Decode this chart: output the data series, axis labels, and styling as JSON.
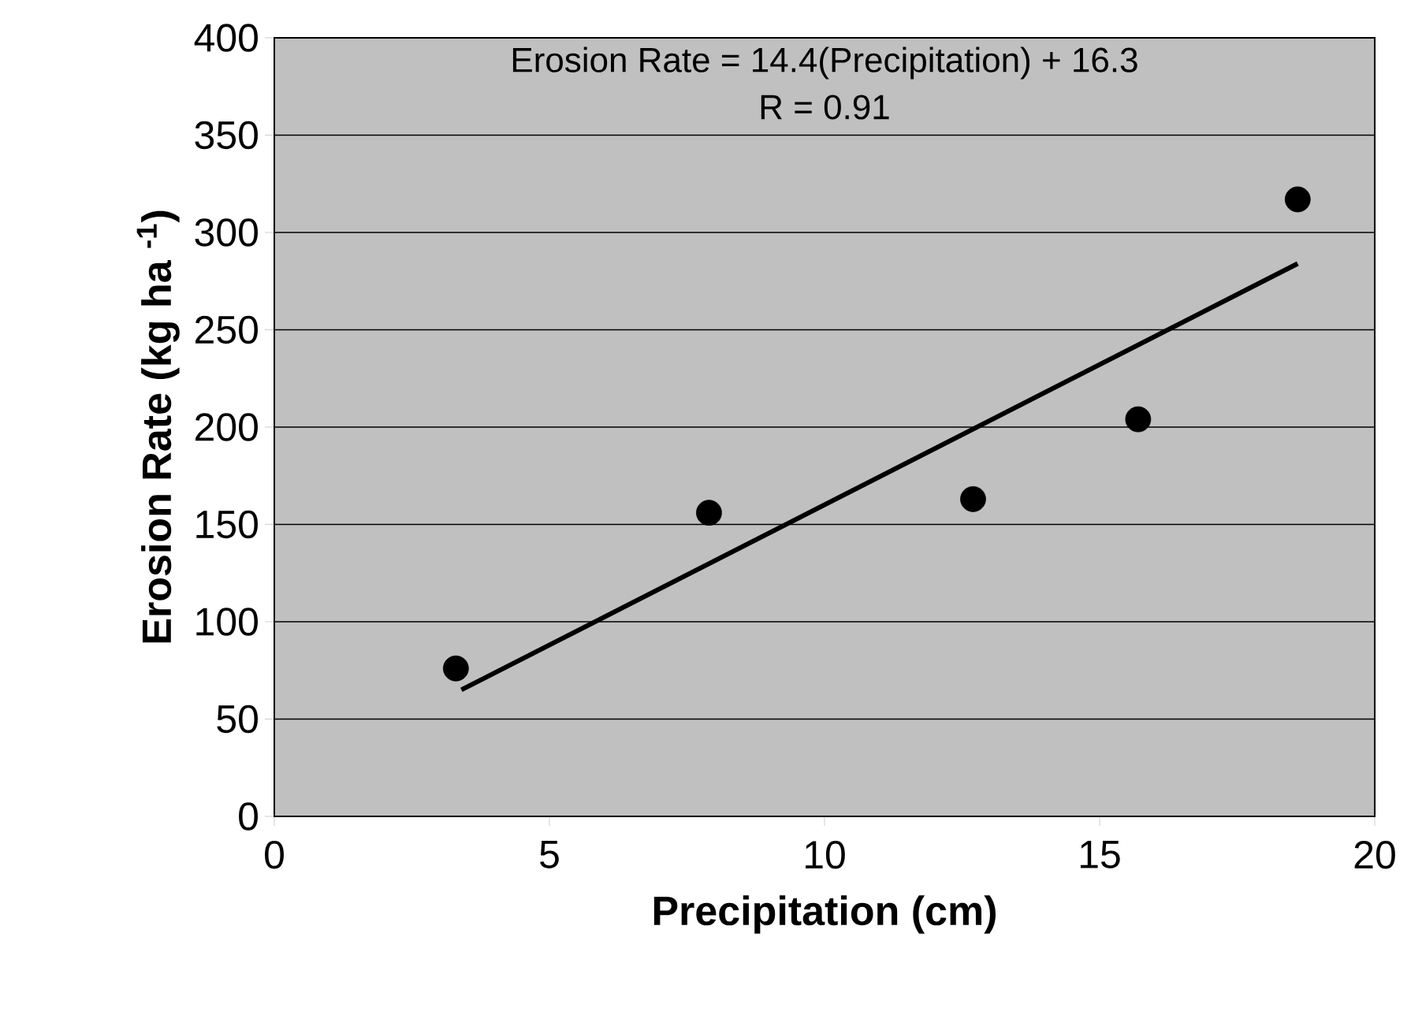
{
  "chart_data": {
    "type": "scatter",
    "xlabel": "Precipitation (cm)",
    "ylabel": "Erosion Rate (kg ha $^{-1}$)",
    "annotations": [
      "Erosion Rate = 14.4(Precipitation) + 16.3",
      "R = 0.91"
    ],
    "series": [
      {
        "color": "#000000",
        "marker": "circle",
        "x": [
          3.3,
          7.9,
          12.7,
          15.7,
          18.6
        ],
        "values": [
          76,
          156,
          163,
          204,
          317
        ]
      },
      {
        "type": "line",
        "color": "#000000",
        "marker": "none",
        "line_style": "solid",
        "x": [
          3.4,
          18.6
        ],
        "values": [
          65,
          284
        ]
      }
    ],
    "xlim": [
      0,
      20
    ],
    "xticks": [
      0,
      5,
      10,
      15,
      20
    ],
    "ylim": [
      0,
      400
    ],
    "yticks": [
      0,
      50,
      100,
      150,
      200,
      250,
      300,
      350,
      400
    ],
    "grid": "y"
  }
}
